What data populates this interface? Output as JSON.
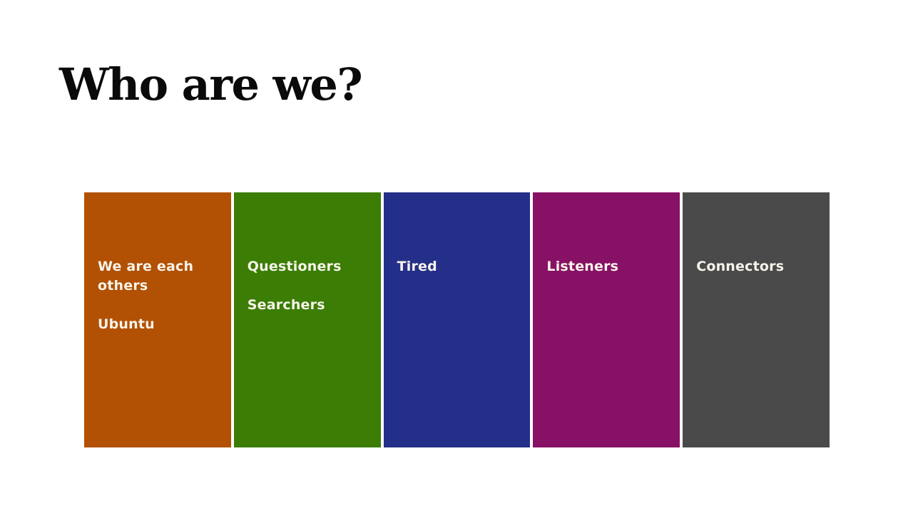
{
  "slide": {
    "title": "Who are we?",
    "title_color": "#0a0a0a",
    "background_color": "#ffffff",
    "label_text_color": "#f7f3ea",
    "columns": [
      {
        "id": "ubuntu",
        "color": "#b25004",
        "lines": [
          "We are each others",
          "Ubuntu"
        ]
      },
      {
        "id": "questioners",
        "color": "#3b7d05",
        "lines": [
          "Questioners",
          "Searchers"
        ]
      },
      {
        "id": "tired",
        "color": "#232f88",
        "lines": [
          "Tired"
        ]
      },
      {
        "id": "listeners",
        "color": "#871164",
        "lines": [
          "Listeners"
        ]
      },
      {
        "id": "connectors",
        "color": "#4a4a4a",
        "lines": [
          "Connectors"
        ]
      }
    ]
  }
}
